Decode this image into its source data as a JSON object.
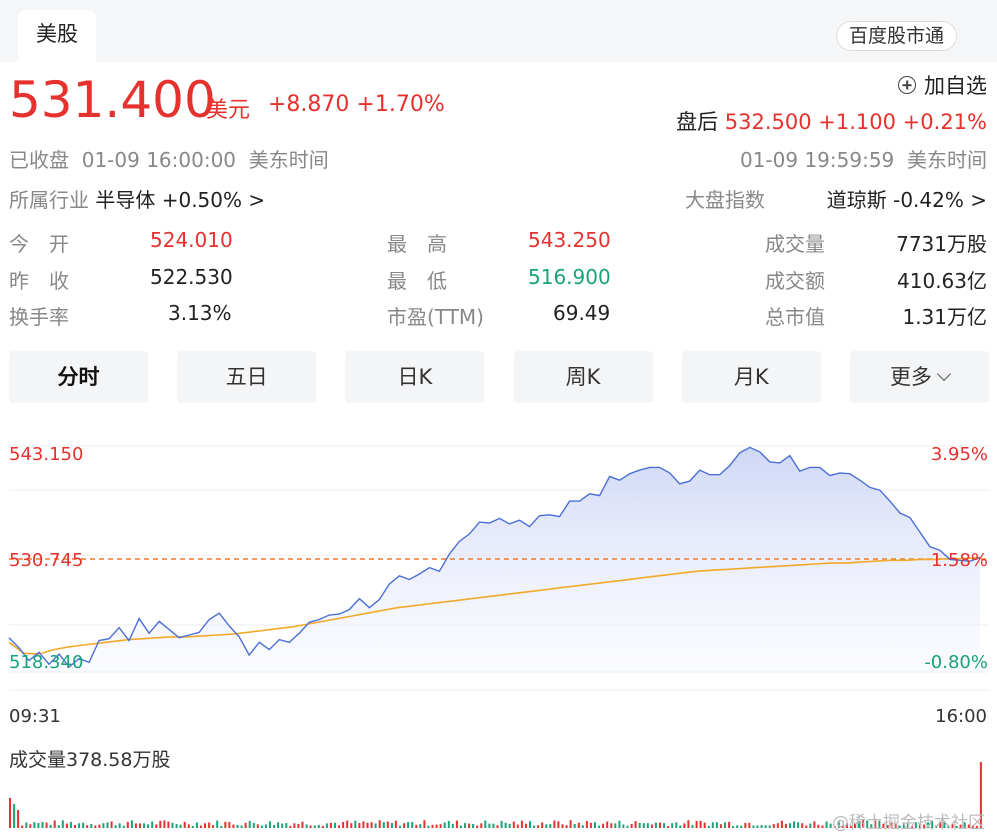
{
  "header": {
    "market_tab": "美股",
    "service_button": "百度股市通"
  },
  "quote": {
    "price": "531.400",
    "currency": "美元",
    "change": "+8.870 +1.70%",
    "status": "已收盘",
    "close_time": "01-09 16:00:00",
    "timezone": "美东时间",
    "watch_label": "加自选",
    "after_hours_label": "盘后",
    "after_hours_value": "532.500 +1.100 +0.21%",
    "after_hours_time": "01-09 19:59:59",
    "after_hours_timezone": "美东时间"
  },
  "industry": {
    "label": "所属行业",
    "name": "半导体",
    "change": "+0.50%",
    "chevron": ">"
  },
  "index": {
    "label": "大盘指数",
    "name": "道琼斯",
    "change": "-0.42%",
    "chevron": ">"
  },
  "stats": {
    "open_label": "今　开",
    "open": "524.010",
    "prev_close_label": "昨　收",
    "prev_close": "522.530",
    "turnover_rate_label": "换手率",
    "turnover_rate": "3.13%",
    "high_label": "最　高",
    "high": "543.250",
    "low_label": "最　低",
    "low": "516.900",
    "pe_label": "市盈(TTM)",
    "pe": "69.49",
    "volume_label": "成交量",
    "volume": "7731万股",
    "amount_label": "成交额",
    "amount": "410.63亿",
    "market_cap_label": "总市值",
    "market_cap": "1.31万亿"
  },
  "tabs": [
    "分时",
    "五日",
    "日K",
    "周K",
    "月K",
    "更多"
  ],
  "colors": {
    "up": "#e5322e",
    "down": "#1aa37a",
    "price_line": "#4a6fd6",
    "avg_line": "#f0a928",
    "ref_line": "#f07a30"
  },
  "chart_data": {
    "type": "line",
    "y_left_labels": [
      "543.150",
      "530.745",
      "518.340"
    ],
    "y_right_labels": [
      "3.95%",
      "1.58%",
      "-0.80%"
    ],
    "x_labels": [
      "09:31",
      "16:00"
    ],
    "ylim": [
      518.34,
      543.15
    ],
    "reference_price": 530.745,
    "series": [
      {
        "values": [
          522.1,
          521.0,
          519.6,
          520.5,
          519.2,
          520.3,
          518.9,
          519.8,
          519.4,
          521.8,
          522.0,
          523.2,
          521.8,
          524.2,
          522.6,
          523.9,
          523.0,
          522.1,
          522.4,
          522.7,
          524.1,
          524.8,
          523.4,
          522.2,
          520.2,
          521.6,
          520.8,
          521.9,
          521.6,
          522.6,
          523.8,
          524.1,
          524.6,
          524.7,
          525.2,
          526.4,
          525.4,
          526.3,
          528.0,
          528.9,
          528.5,
          529.1,
          529.8,
          529.4,
          531.3,
          532.7,
          533.5,
          534.8,
          534.7,
          535.2,
          534.6,
          535.0,
          534.3,
          535.5,
          535.6,
          535.4,
          537.1,
          537.1,
          537.9,
          537.7,
          539.8,
          539.4,
          540.1,
          540.5,
          540.8,
          540.8,
          540.2,
          539.0,
          539.3,
          540.5,
          540.0,
          540.0,
          541.0,
          542.4,
          543.0,
          542.5,
          541.4,
          541.3,
          542.1,
          540.4,
          540.8,
          540.8,
          539.9,
          540.2,
          540.1,
          539.4,
          538.6,
          538.3,
          537.1,
          535.8,
          535.3,
          533.7,
          532.1,
          531.7,
          530.7,
          530.6,
          530.5,
          530.9
        ]
      },
      {
        "values": [
          521.6,
          520.4,
          520.3,
          520.8,
          521.1,
          521.3,
          521.5,
          521.7,
          521.9,
          522.0,
          522.1,
          522.2,
          522.2,
          522.3,
          522.4,
          522.5,
          522.7,
          522.9,
          523.1,
          523.3,
          523.6,
          523.9,
          524.2,
          524.5,
          524.8,
          525.1,
          525.4,
          525.6,
          525.8,
          526.0,
          526.2,
          526.4,
          526.6,
          526.8,
          527.0,
          527.2,
          527.4,
          527.6,
          527.8,
          528.0,
          528.2,
          528.4,
          528.6,
          528.8,
          529.0,
          529.2,
          529.4,
          529.5,
          529.6,
          529.7,
          529.8,
          529.9,
          530.0,
          530.1,
          530.2,
          530.3,
          530.3,
          530.4,
          530.5,
          530.6,
          530.6,
          530.7,
          530.7,
          530.8,
          530.8,
          530.9
        ]
      }
    ],
    "volume": {
      "label": "成交量378.58万股"
    }
  },
  "watermark": "@稀土掘金技术社区"
}
